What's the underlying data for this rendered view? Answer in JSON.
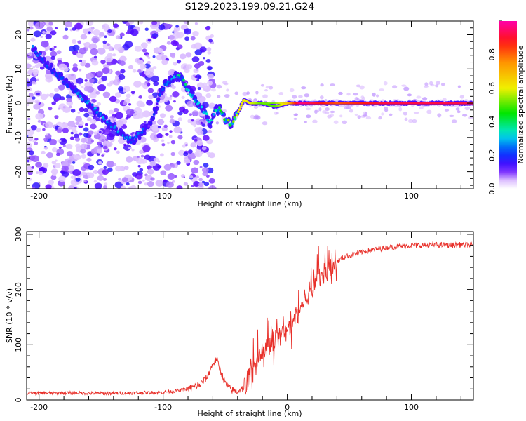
{
  "title": "S129.2023.199.09.21.G24",
  "colors": {
    "snr_line": "#e8302a",
    "ridge_low": "#5a00ff",
    "ridge_high": "#ff1a1a",
    "scatter": "#8a33ff"
  },
  "chart_data": [
    {
      "type": "heatmap",
      "xlabel": "Height of straight line (km)",
      "ylabel": "Frequency (Hz)",
      "xlim": [
        -210,
        150
      ],
      "ylim": [
        -25,
        24
      ],
      "x_ticks": [
        -200,
        -100,
        0,
        100
      ],
      "y_ticks": [
        -20,
        -10,
        0,
        10,
        20
      ],
      "colorbar": {
        "label": "Normalized spectral amplitude",
        "range": [
          0.0,
          1.0
        ],
        "ticks": [
          "0.0",
          "0.2",
          "0.4",
          "0.6",
          "0.8"
        ],
        "tick_values": [
          0.0,
          0.2,
          0.4,
          0.6,
          0.8
        ]
      },
      "ridge": {
        "x": [
          -205,
          -190,
          -175,
          -160,
          -150,
          -140,
          -130,
          -125,
          -110,
          -100,
          -90,
          -85,
          -78,
          -72,
          -66,
          -62,
          -58,
          -54,
          -50,
          -45,
          -40,
          -35,
          -30,
          -20,
          -10,
          0,
          10,
          20,
          40,
          60,
          80,
          100,
          120,
          150
        ],
        "freq": [
          16,
          10,
          5,
          0,
          -4,
          -7,
          -10,
          -11,
          -6,
          5,
          8,
          7,
          3,
          0,
          -3,
          -6,
          -2,
          -2,
          -5,
          -6,
          -3,
          1,
          0,
          0,
          -1,
          0,
          0,
          0,
          0,
          0,
          0,
          0,
          0,
          0
        ],
        "amplitude": [
          0.25,
          0.2,
          0.22,
          0.25,
          0.25,
          0.25,
          0.25,
          0.25,
          0.2,
          0.2,
          0.3,
          0.35,
          0.3,
          0.3,
          0.3,
          0.3,
          0.3,
          0.4,
          0.4,
          0.5,
          0.6,
          0.6,
          0.6,
          0.5,
          0.5,
          0.65,
          0.95,
          0.9,
          0.8,
          0.85,
          0.9,
          0.9,
          0.9,
          0.9
        ]
      }
    },
    {
      "type": "line",
      "xlabel": "Height of straight line (km)",
      "ylabel": "SNR (10 * v/v)",
      "xlim": [
        -210,
        150
      ],
      "ylim": [
        0,
        305
      ],
      "x_ticks": [
        -200,
        -100,
        0,
        100
      ],
      "y_ticks": [
        0,
        100,
        200,
        300
      ],
      "series": [
        {
          "x": [
            -210,
            -180,
            -150,
            -120,
            -100,
            -90,
            -80,
            -70,
            -65,
            -60,
            -57,
            -55,
            -50,
            -45,
            -40,
            -35,
            -30,
            -25,
            -20,
            -15,
            -10,
            -5,
            0,
            5,
            10,
            15,
            20,
            25,
            30,
            35,
            40,
            45,
            50,
            60,
            70,
            80,
            90,
            100,
            110,
            120,
            130,
            140,
            150
          ],
          "y": [
            12,
            13,
            12,
            13,
            14,
            16,
            20,
            28,
            40,
            65,
            75,
            60,
            30,
            18,
            16,
            22,
            45,
            65,
            85,
            95,
            110,
            115,
            125,
            140,
            165,
            185,
            205,
            220,
            230,
            240,
            250,
            258,
            262,
            268,
            272,
            276,
            278,
            280,
            280,
            281,
            280,
            281,
            280
          ]
        }
      ]
    }
  ]
}
